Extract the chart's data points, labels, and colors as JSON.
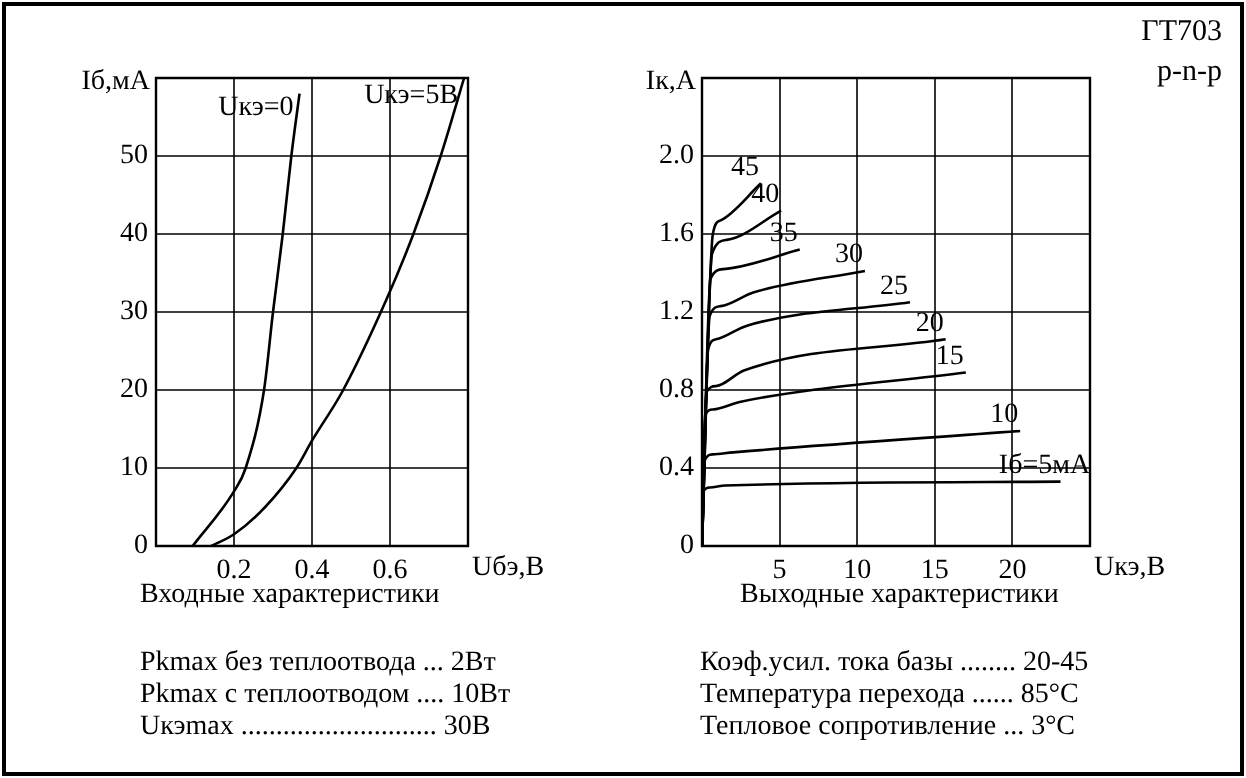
{
  "chart_data": [
    {
      "type": "line",
      "title": "Входные характеристики",
      "xlabel": "Uбэ,В",
      "ylabel": "Iб,мА",
      "xlim": [
        0,
        0.8
      ],
      "xticks": [
        0.2,
        0.4,
        0.6
      ],
      "ylim": [
        0,
        60
      ],
      "yticks": [
        0,
        10,
        20,
        30,
        40,
        50
      ],
      "grid": true,
      "legend": false,
      "marker": "none",
      "series": [
        {
          "name": "Uкэ=0",
          "color": "#000000",
          "x": [
            0.094,
            0.2,
            0.23,
            0.277,
            0.3,
            0.325,
            0.347,
            0.368
          ],
          "values": [
            0,
            7,
            10,
            20,
            30,
            40,
            50,
            58
          ]
        },
        {
          "name": "Uкэ=5В",
          "color": "#000000",
          "x": [
            0.142,
            0.2,
            0.28,
            0.36,
            0.4,
            0.48,
            0.59,
            0.66,
            0.73,
            0.79
          ],
          "values": [
            0,
            1.5,
            5,
            10,
            13.5,
            20,
            31.5,
            40,
            50,
            60
          ]
        }
      ],
      "annotations": [
        "Pkmax без теплоотвода ... 2Вт",
        "Pkmax с теплоотводом .... 10Вт",
        "Uкэmax ............................ 30В"
      ]
    },
    {
      "type": "line",
      "title": "Выходные характеристики",
      "xlabel": "Uкэ,В",
      "ylabel": "Iк,А",
      "xlim": [
        0,
        25
      ],
      "xticks": [
        5,
        10,
        15,
        20
      ],
      "ylim": [
        0,
        2.4
      ],
      "yticks": [
        0,
        0.4,
        0.8,
        1.2,
        1.6,
        {
          "value": 2,
          "label": "2.0"
        }
      ],
      "grid": true,
      "legend": false,
      "marker": "none",
      "series": [
        {
          "name": "Iб=5мА",
          "color": "#000000",
          "x": [
            0,
            0.1,
            0.5,
            1.5,
            23.1
          ],
          "values": [
            0,
            0.28,
            0.3,
            0.31,
            0.33
          ]
        },
        {
          "name": "10",
          "color": "#000000",
          "x": [
            0,
            0.13,
            0.7,
            2,
            20.5
          ],
          "values": [
            0,
            0.43,
            0.47,
            0.48,
            0.59
          ]
        },
        {
          "name": "15",
          "color": "#000000",
          "x": [
            0,
            0.2,
            0.7,
            2.5,
            17
          ],
          "values": [
            0,
            0.67,
            0.7,
            0.74,
            0.89
          ]
        },
        {
          "name": "20",
          "color": "#000000",
          "x": [
            0,
            0.3,
            0.9,
            2.7,
            15.7
          ],
          "values": [
            0,
            0.79,
            0.82,
            0.9,
            1.06
          ]
        },
        {
          "name": "25",
          "color": "#000000",
          "x": [
            0,
            0.4,
            0.9,
            2.9,
            13.4
          ],
          "values": [
            0,
            1.01,
            1.06,
            1.13,
            1.25
          ]
        },
        {
          "name": "30",
          "color": "#000000",
          "x": [
            0,
            0.5,
            1.2,
            3.3,
            10.5
          ],
          "values": [
            0,
            1.18,
            1.23,
            1.3,
            1.41
          ]
        },
        {
          "name": "35",
          "color": "#000000",
          "x": [
            0,
            0.55,
            1.4,
            6.3
          ],
          "values": [
            0,
            1.37,
            1.42,
            1.52
          ]
        },
        {
          "name": "40",
          "color": "#000000",
          "x": [
            0,
            0.65,
            1.6,
            5.1
          ],
          "values": [
            0,
            1.5,
            1.57,
            1.72
          ]
        },
        {
          "name": "45",
          "color": "#000000",
          "x": [
            0,
            0.7,
            1.2,
            3.8
          ],
          "values": [
            0,
            1.6,
            1.67,
            1.86
          ]
        }
      ],
      "annotations": [
        "ГТ703",
        "p-n-p",
        "Коэф.усил. тока базы ........ 20-45",
        "Температура перехода ...... 85°C",
        "Тепловое сопротивление ... 3°C"
      ]
    }
  ]
}
